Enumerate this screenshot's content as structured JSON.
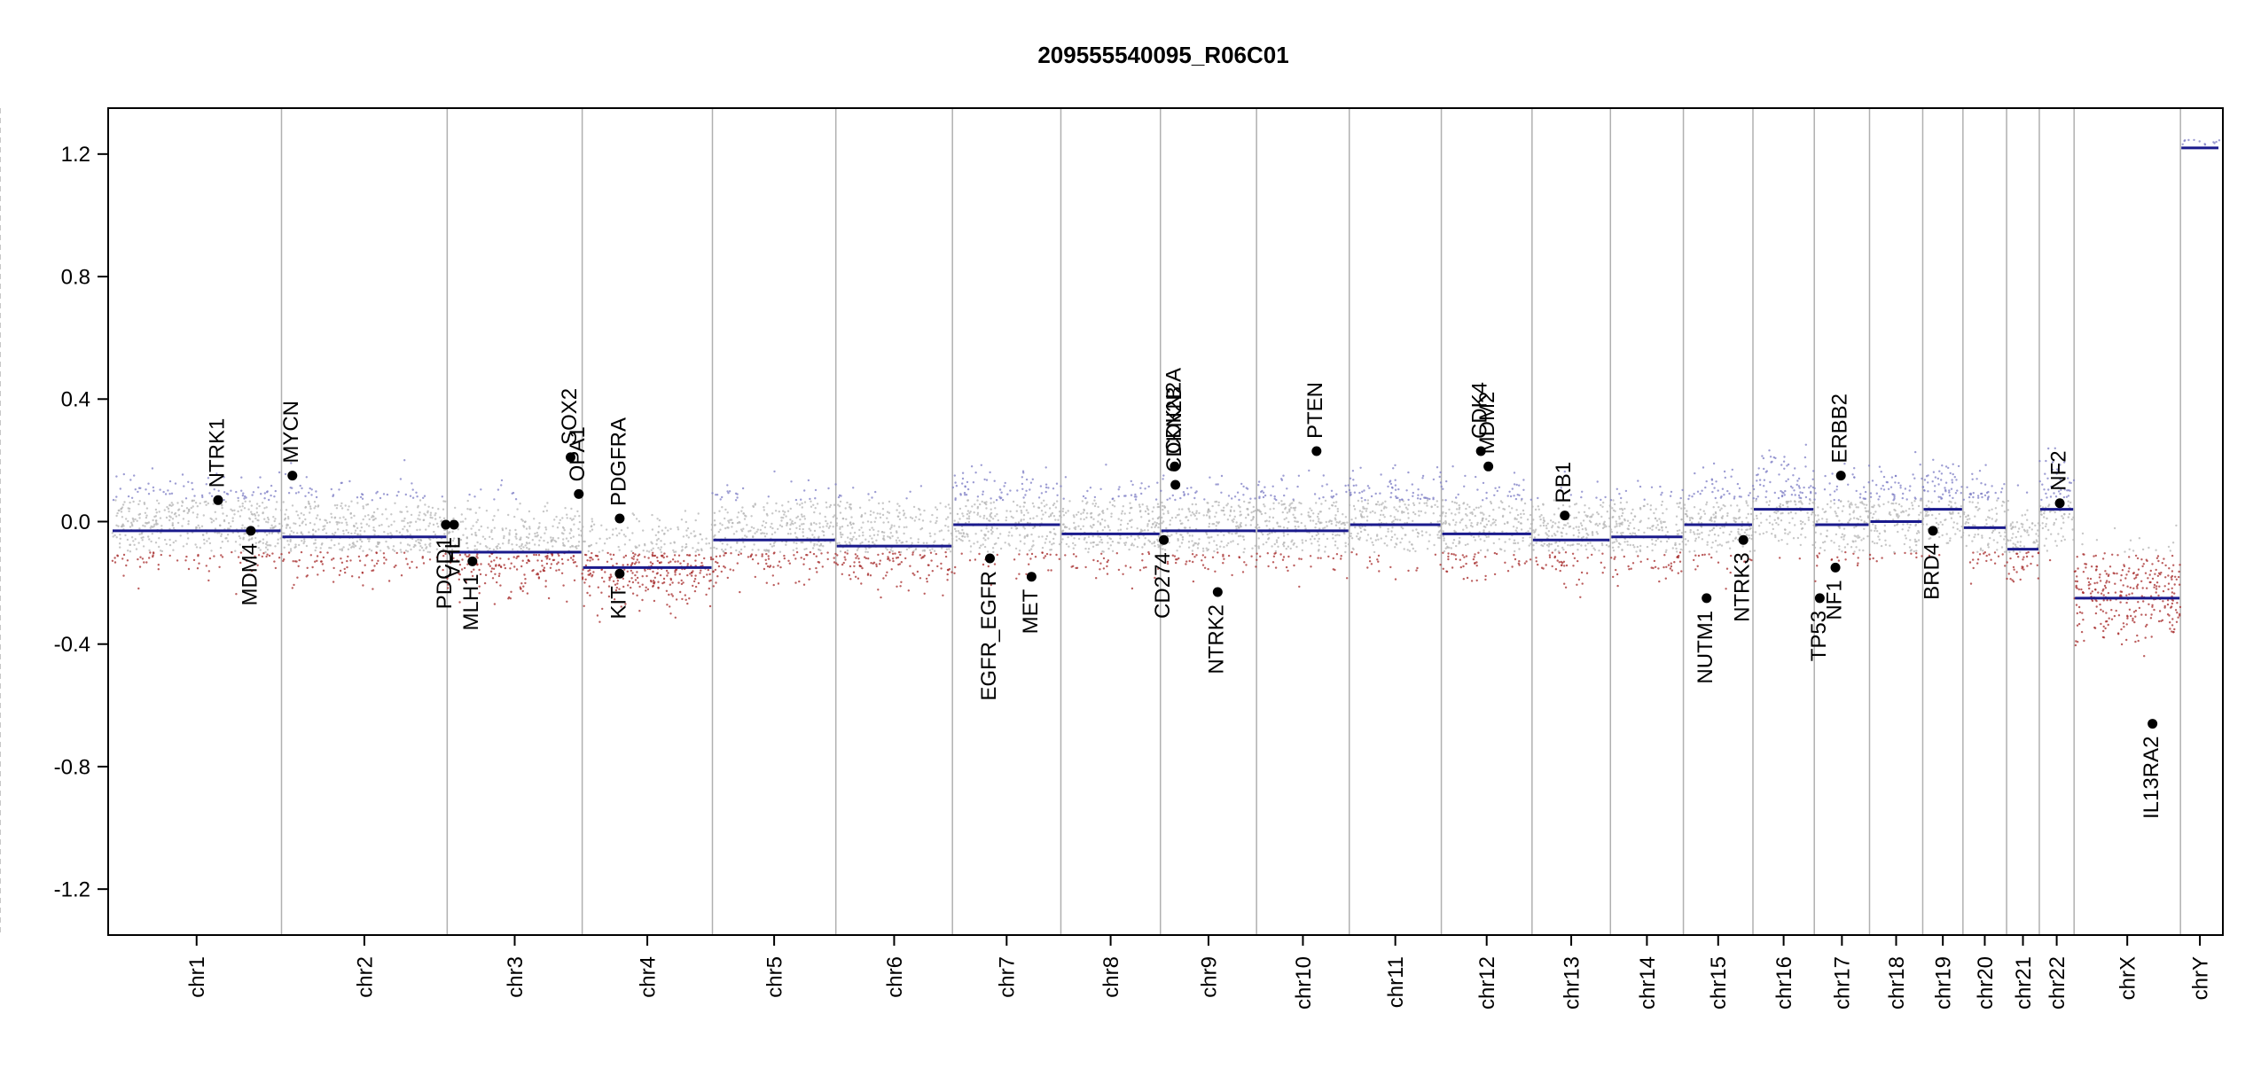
{
  "chart_data": {
    "type": "scatter",
    "title": "209555540095_R06C01",
    "xlabel": "",
    "ylabel": "",
    "ylim": [
      -1.35,
      1.35
    ],
    "yticks": [
      -1.2,
      -0.8,
      -0.4,
      0.0,
      0.4,
      0.8,
      1.2
    ],
    "ytick_labels": [
      "-1.2",
      "-0.8",
      "-0.4",
      "0.0",
      "0.4",
      "0.8",
      "1.2"
    ],
    "grid": false,
    "legend": "none",
    "colors": {
      "segment": "#1a1a8c",
      "gain_probe": "#7c7cc4",
      "neutral_probe": "#b4b4b4",
      "loss_probe": "#a52a2a",
      "gene_marker": "#000000",
      "chrom_boundary": "#b0b0b0",
      "centromere": "#c8c8c8"
    },
    "chromosomes": [
      {
        "name": "chr1",
        "length_mb": 249,
        "centromere_mb": 124
      },
      {
        "name": "chr2",
        "length_mb": 243,
        "centromere_mb": 93
      },
      {
        "name": "chr3",
        "length_mb": 198,
        "centromere_mb": 91
      },
      {
        "name": "chr4",
        "length_mb": 191,
        "centromere_mb": 50
      },
      {
        "name": "chr5",
        "length_mb": 181,
        "centromere_mb": 48
      },
      {
        "name": "chr6",
        "length_mb": 171,
        "centromere_mb": 60
      },
      {
        "name": "chr7",
        "length_mb": 159,
        "centromere_mb": 60
      },
      {
        "name": "chr8",
        "length_mb": 146,
        "centromere_mb": 45
      },
      {
        "name": "chr9",
        "length_mb": 141,
        "centromere_mb": 49
      },
      {
        "name": "chr10",
        "length_mb": 136,
        "centromere_mb": 40
      },
      {
        "name": "chr11",
        "length_mb": 135,
        "centromere_mb": 53
      },
      {
        "name": "chr12",
        "length_mb": 133,
        "centromere_mb": 35
      },
      {
        "name": "chr13",
        "length_mb": 115,
        "centromere_mb": 18
      },
      {
        "name": "chr14",
        "length_mb": 107,
        "centromere_mb": 17
      },
      {
        "name": "chr15",
        "length_mb": 102,
        "centromere_mb": 19
      },
      {
        "name": "chr16",
        "length_mb": 90,
        "centromere_mb": 36
      },
      {
        "name": "chr17",
        "length_mb": 81,
        "centromere_mb": 24
      },
      {
        "name": "chr18",
        "length_mb": 78,
        "centromere_mb": 17
      },
      {
        "name": "chr19",
        "length_mb": 59,
        "centromere_mb": 26
      },
      {
        "name": "chr20",
        "length_mb": 64,
        "centromere_mb": 28
      },
      {
        "name": "chr21",
        "length_mb": 48,
        "centromere_mb": 12
      },
      {
        "name": "chr22",
        "length_mb": 51,
        "centromere_mb": 15
      },
      {
        "name": "chrX",
        "length_mb": 156,
        "centromere_mb": 60
      },
      {
        "name": "chrY",
        "length_mb": 57,
        "centromere_mb": 10
      }
    ],
    "segments": [
      {
        "chrom": "chr1",
        "value": -0.03
      },
      {
        "chrom": "chr2",
        "value": -0.05
      },
      {
        "chrom": "chr3",
        "value": -0.1
      },
      {
        "chrom": "chr4",
        "value": -0.15
      },
      {
        "chrom": "chr5",
        "value": -0.06
      },
      {
        "chrom": "chr6",
        "value": -0.08
      },
      {
        "chrom": "chr7",
        "value": -0.01
      },
      {
        "chrom": "chr8",
        "value": -0.04
      },
      {
        "chrom": "chr9",
        "value": -0.03
      },
      {
        "chrom": "chr10",
        "value": -0.03
      },
      {
        "chrom": "chr11",
        "value": -0.01
      },
      {
        "chrom": "chr12",
        "value": -0.04
      },
      {
        "chrom": "chr13",
        "value": -0.06
      },
      {
        "chrom": "chr14",
        "value": -0.05
      },
      {
        "chrom": "chr15",
        "value": -0.01
      },
      {
        "chrom": "chr16",
        "value": 0.04
      },
      {
        "chrom": "chr17",
        "value": -0.01
      },
      {
        "chrom": "chr18",
        "value": 0.0
      },
      {
        "chrom": "chr19",
        "value": 0.04
      },
      {
        "chrom": "chr20",
        "value": -0.02
      },
      {
        "chrom": "chr21",
        "value": -0.09
      },
      {
        "chrom": "chr22",
        "value": 0.04
      },
      {
        "chrom": "chrX",
        "value": -0.25
      },
      {
        "chrom": "chrY",
        "value": 1.22
      }
    ],
    "genes": [
      {
        "name": "NTRK1",
        "chrom": "chr1",
        "pos_mb": 156,
        "value": 0.07,
        "label_side": "up"
      },
      {
        "name": "MDM4",
        "chrom": "chr1",
        "pos_mb": 204,
        "value": -0.03,
        "label_side": "down"
      },
      {
        "name": "MYCN",
        "chrom": "chr2",
        "pos_mb": 16,
        "value": 0.15,
        "label_side": "up"
      },
      {
        "name": "PDCD1",
        "chrom": "chr2",
        "pos_mb": 241,
        "value": -0.01,
        "label_side": "down"
      },
      {
        "name": "VHL",
        "chrom": "chr3",
        "pos_mb": 10,
        "value": -0.01,
        "label_side": "down"
      },
      {
        "name": "MLH1",
        "chrom": "chr3",
        "pos_mb": 37,
        "value": -0.13,
        "label_side": "down"
      },
      {
        "name": "SOX2",
        "chrom": "chr3",
        "pos_mb": 181,
        "value": 0.21,
        "label_side": "up"
      },
      {
        "name": "OPA1",
        "chrom": "chr3",
        "pos_mb": 193,
        "value": 0.09,
        "label_side": "up"
      },
      {
        "name": "PDGFRA",
        "chrom": "chr4",
        "pos_mb": 55,
        "value": 0.01,
        "label_side": "up"
      },
      {
        "name": "KIT",
        "chrom": "chr4",
        "pos_mb": 55,
        "value": -0.17,
        "label_side": "down"
      },
      {
        "name": "EGFR_EGFR",
        "chrom": "chr7",
        "pos_mb": 55,
        "value": -0.12,
        "label_side": "down"
      },
      {
        "name": "MET",
        "chrom": "chr7",
        "pos_mb": 116,
        "value": -0.18,
        "label_side": "down"
      },
      {
        "name": "CDKN2A",
        "chrom": "chr9",
        "pos_mb": 21,
        "value": 0.18,
        "label_side": "up"
      },
      {
        "name": "CDKN2B",
        "chrom": "chr9",
        "pos_mb": 22,
        "value": 0.12,
        "label_side": "up"
      },
      {
        "name": "CD274",
        "chrom": "chr9",
        "pos_mb": 5,
        "value": -0.06,
        "label_side": "down"
      },
      {
        "name": "NTRK2",
        "chrom": "chr9",
        "pos_mb": 84,
        "value": -0.23,
        "label_side": "down"
      },
      {
        "name": "PTEN",
        "chrom": "chr10",
        "pos_mb": 88,
        "value": 0.23,
        "label_side": "up"
      },
      {
        "name": "CDK4",
        "chrom": "chr12",
        "pos_mb": 58,
        "value": 0.23,
        "label_side": "up"
      },
      {
        "name": "MDM2",
        "chrom": "chr12",
        "pos_mb": 69,
        "value": 0.18,
        "label_side": "up"
      },
      {
        "name": "RB1",
        "chrom": "chr13",
        "pos_mb": 48,
        "value": 0.02,
        "label_side": "up"
      },
      {
        "name": "NUTM1",
        "chrom": "chr15",
        "pos_mb": 34,
        "value": -0.25,
        "label_side": "down"
      },
      {
        "name": "NTRK3",
        "chrom": "chr15",
        "pos_mb": 88,
        "value": -0.06,
        "label_side": "down"
      },
      {
        "name": "ERBB2",
        "chrom": "chr17",
        "pos_mb": 39,
        "value": 0.15,
        "label_side": "up"
      },
      {
        "name": "TP53",
        "chrom": "chr17",
        "pos_mb": 8,
        "value": -0.25,
        "label_side": "down"
      },
      {
        "name": "NF1",
        "chrom": "chr17",
        "pos_mb": 31,
        "value": -0.15,
        "label_side": "down"
      },
      {
        "name": "BRD4",
        "chrom": "chr19",
        "pos_mb": 15,
        "value": -0.03,
        "label_side": "down"
      },
      {
        "name": "NF2",
        "chrom": "chr22",
        "pos_mb": 30,
        "value": 0.06,
        "label_side": "up"
      },
      {
        "name": "IL13RA2",
        "chrom": "chrX",
        "pos_mb": 115,
        "value": -0.66,
        "label_side": "down"
      }
    ]
  }
}
